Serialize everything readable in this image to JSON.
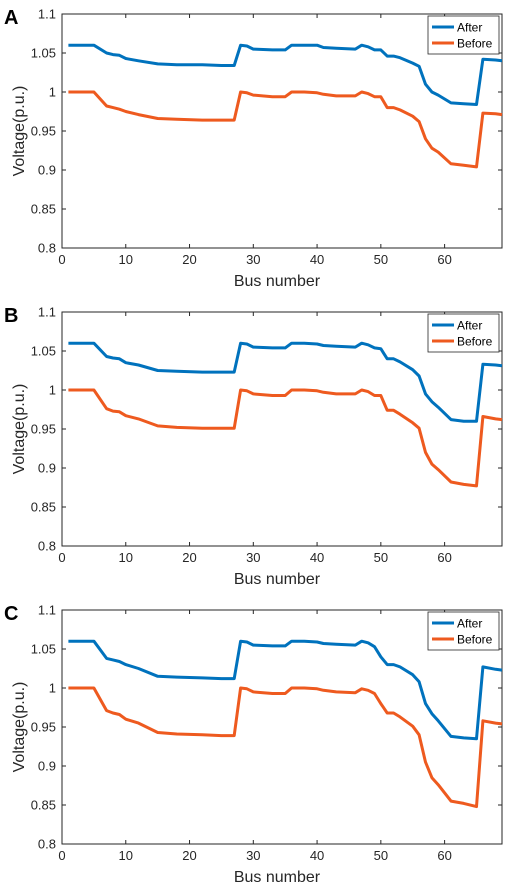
{
  "colors": {
    "after": "#0072BD",
    "before": "#EE5A1F",
    "axis": "#262626"
  },
  "chart_data": [
    {
      "type": "line",
      "panel_label": "A",
      "xlabel": "Bus number",
      "ylabel": "Voltage(p.u.)",
      "xlim": [
        0,
        69
      ],
      "ylim": [
        0.8,
        1.1
      ],
      "xticks": [
        0,
        10,
        20,
        30,
        40,
        50,
        60
      ],
      "yticks": [
        0.8,
        0.85,
        0.9,
        0.95,
        1,
        1.05,
        1.1
      ],
      "ytick_labels": [
        "0.8",
        "0.85",
        "0.9",
        "0.95",
        "1",
        "1.05",
        "1.1"
      ],
      "legend": "top-right",
      "series": [
        {
          "name": "After",
          "key": "after",
          "x": [
            1,
            5,
            7,
            8,
            9,
            10,
            12,
            15,
            18,
            22,
            25,
            27,
            28,
            29,
            30,
            33,
            35,
            36,
            38,
            40,
            41,
            43,
            46,
            47,
            48,
            49,
            50,
            51,
            52,
            53,
            55,
            56,
            57,
            58,
            59,
            61,
            63,
            65,
            66,
            68,
            69
          ],
          "y": [
            1.06,
            1.06,
            1.05,
            1.048,
            1.047,
            1.043,
            1.04,
            1.036,
            1.035,
            1.035,
            1.034,
            1.034,
            1.06,
            1.059,
            1.055,
            1.054,
            1.054,
            1.06,
            1.06,
            1.06,
            1.057,
            1.056,
            1.055,
            1.06,
            1.058,
            1.054,
            1.054,
            1.046,
            1.046,
            1.044,
            1.037,
            1.033,
            1.01,
            1.0,
            0.996,
            0.986,
            0.985,
            0.984,
            1.042,
            1.041,
            1.04
          ]
        },
        {
          "name": "Before",
          "key": "before",
          "x": [
            1,
            5,
            7,
            8,
            9,
            10,
            12,
            15,
            18,
            22,
            25,
            27,
            28,
            29,
            30,
            33,
            35,
            36,
            38,
            40,
            41,
            43,
            46,
            47,
            48,
            49,
            50,
            51,
            52,
            53,
            55,
            56,
            57,
            58,
            59,
            61,
            63,
            65,
            66,
            68,
            69
          ],
          "y": [
            1.0,
            1.0,
            0.982,
            0.98,
            0.978,
            0.975,
            0.971,
            0.966,
            0.965,
            0.964,
            0.964,
            0.964,
            1.0,
            0.999,
            0.996,
            0.994,
            0.994,
            1.0,
            1.0,
            0.999,
            0.997,
            0.995,
            0.995,
            1.0,
            0.998,
            0.994,
            0.994,
            0.98,
            0.98,
            0.977,
            0.969,
            0.962,
            0.94,
            0.928,
            0.923,
            0.908,
            0.906,
            0.904,
            0.973,
            0.972,
            0.971
          ]
        }
      ]
    },
    {
      "type": "line",
      "panel_label": "B",
      "xlabel": "Bus number",
      "ylabel": "Voltage(p.u.)",
      "xlim": [
        0,
        69
      ],
      "ylim": [
        0.8,
        1.1
      ],
      "xticks": [
        0,
        10,
        20,
        30,
        40,
        50,
        60
      ],
      "yticks": [
        0.8,
        0.85,
        0.9,
        0.95,
        1,
        1.05,
        1.1
      ],
      "ytick_labels": [
        "0.8",
        "0.85",
        "0.9",
        "0.95",
        "1",
        "1.05",
        "1.1"
      ],
      "legend": "top-right",
      "series": [
        {
          "name": "After",
          "key": "after",
          "x": [
            1,
            5,
            7,
            8,
            9,
            10,
            12,
            15,
            18,
            22,
            25,
            27,
            28,
            29,
            30,
            33,
            35,
            36,
            38,
            40,
            41,
            43,
            46,
            47,
            48,
            49,
            50,
            51,
            52,
            53,
            55,
            56,
            57,
            58,
            59,
            61,
            63,
            65,
            66,
            68,
            69
          ],
          "y": [
            1.06,
            1.06,
            1.043,
            1.041,
            1.04,
            1.035,
            1.032,
            1.025,
            1.024,
            1.023,
            1.023,
            1.023,
            1.06,
            1.059,
            1.055,
            1.054,
            1.054,
            1.06,
            1.06,
            1.059,
            1.057,
            1.056,
            1.055,
            1.06,
            1.058,
            1.054,
            1.053,
            1.04,
            1.04,
            1.036,
            1.026,
            1.018,
            0.995,
            0.985,
            0.978,
            0.962,
            0.96,
            0.96,
            1.033,
            1.032,
            1.031
          ]
        },
        {
          "name": "Before",
          "key": "before",
          "x": [
            1,
            5,
            7,
            8,
            9,
            10,
            12,
            15,
            18,
            22,
            25,
            27,
            28,
            29,
            30,
            33,
            35,
            36,
            38,
            40,
            41,
            43,
            46,
            47,
            48,
            49,
            50,
            51,
            52,
            53,
            55,
            56,
            57,
            58,
            59,
            61,
            63,
            65,
            66,
            68,
            69
          ],
          "y": [
            1.0,
            1.0,
            0.976,
            0.973,
            0.972,
            0.967,
            0.963,
            0.954,
            0.952,
            0.951,
            0.951,
            0.951,
            1.0,
            0.999,
            0.995,
            0.993,
            0.993,
            1.0,
            1.0,
            0.999,
            0.997,
            0.995,
            0.995,
            1.0,
            0.998,
            0.993,
            0.993,
            0.974,
            0.974,
            0.969,
            0.958,
            0.951,
            0.92,
            0.905,
            0.898,
            0.882,
            0.879,
            0.877,
            0.966,
            0.963,
            0.962
          ]
        }
      ]
    },
    {
      "type": "line",
      "panel_label": "C",
      "xlabel": "Bus number",
      "ylabel": "Voltage(p.u.)",
      "xlim": [
        0,
        69
      ],
      "ylim": [
        0.8,
        1.1
      ],
      "xticks": [
        0,
        10,
        20,
        30,
        40,
        50,
        60
      ],
      "yticks": [
        0.8,
        0.85,
        0.9,
        0.95,
        1,
        1.05,
        1.1
      ],
      "ytick_labels": [
        "0.8",
        "0.85",
        "0.9",
        "0.95",
        "1",
        "1.05",
        "1.1"
      ],
      "legend": "top-right",
      "series": [
        {
          "name": "After",
          "key": "after",
          "x": [
            1,
            5,
            7,
            8,
            9,
            10,
            12,
            15,
            18,
            22,
            25,
            27,
            28,
            29,
            30,
            33,
            35,
            36,
            38,
            40,
            41,
            43,
            46,
            47,
            48,
            49,
            50,
            51,
            52,
            53,
            55,
            56,
            57,
            58,
            59,
            61,
            63,
            65,
            66,
            68,
            69
          ],
          "y": [
            1.06,
            1.06,
            1.038,
            1.036,
            1.034,
            1.03,
            1.025,
            1.015,
            1.014,
            1.013,
            1.012,
            1.012,
            1.06,
            1.059,
            1.055,
            1.054,
            1.054,
            1.06,
            1.06,
            1.059,
            1.057,
            1.056,
            1.055,
            1.06,
            1.058,
            1.053,
            1.04,
            1.03,
            1.03,
            1.027,
            1.017,
            1.008,
            0.98,
            0.967,
            0.958,
            0.938,
            0.936,
            0.935,
            1.027,
            1.024,
            1.023
          ]
        },
        {
          "name": "Before",
          "key": "before",
          "x": [
            1,
            5,
            7,
            8,
            9,
            10,
            12,
            15,
            18,
            22,
            25,
            27,
            28,
            29,
            30,
            33,
            35,
            36,
            38,
            40,
            41,
            43,
            46,
            47,
            48,
            49,
            50,
            51,
            52,
            53,
            55,
            56,
            57,
            58,
            59,
            61,
            63,
            65,
            66,
            68,
            69
          ],
          "y": [
            1.0,
            1.0,
            0.971,
            0.968,
            0.966,
            0.96,
            0.955,
            0.943,
            0.941,
            0.94,
            0.939,
            0.939,
            1.0,
            0.999,
            0.995,
            0.993,
            0.993,
            1.0,
            1.0,
            0.999,
            0.997,
            0.995,
            0.994,
            0.999,
            0.997,
            0.993,
            0.98,
            0.968,
            0.968,
            0.963,
            0.951,
            0.94,
            0.905,
            0.885,
            0.876,
            0.855,
            0.852,
            0.848,
            0.958,
            0.955,
            0.954
          ]
        }
      ]
    }
  ]
}
